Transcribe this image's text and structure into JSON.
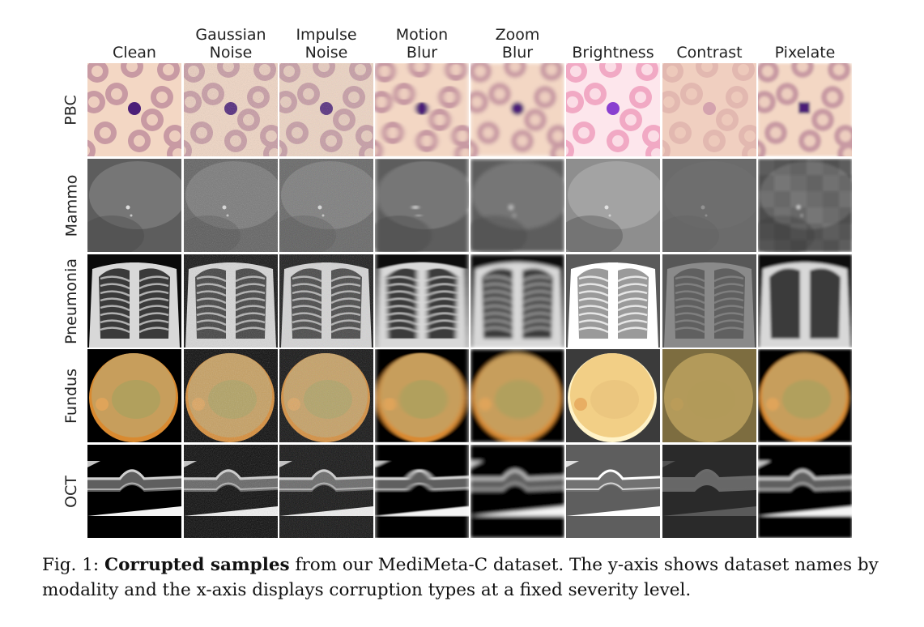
{
  "figure": {
    "columns": [
      {
        "key": "clean",
        "lines": [
          "Clean"
        ]
      },
      {
        "key": "gaussian",
        "lines": [
          "Gaussian",
          "Noise"
        ]
      },
      {
        "key": "impulse",
        "lines": [
          "Impulse",
          "Noise"
        ]
      },
      {
        "key": "motion",
        "lines": [
          "Motion",
          "Blur"
        ]
      },
      {
        "key": "zoom",
        "lines": [
          "Zoom",
          "Blur"
        ]
      },
      {
        "key": "brightness",
        "lines": [
          "Brightness"
        ]
      },
      {
        "key": "contrast",
        "lines": [
          "Contrast"
        ]
      },
      {
        "key": "pixelate",
        "lines": [
          "Pixelate"
        ]
      }
    ],
    "rows": [
      {
        "key": "pbc",
        "label": "PBC"
      },
      {
        "key": "mammo",
        "label": "Mammo"
      },
      {
        "key": "pneumonia",
        "label": "Pneumonia"
      },
      {
        "key": "fundus",
        "label": "Fundus"
      },
      {
        "key": "oct",
        "label": "OCT"
      }
    ],
    "colors": {
      "pbc_background": "#f3d7c4",
      "pbc_cell": "#c89aa3",
      "pbc_nucleus": "#4b1f78",
      "fundus_disc": "#c79e5c",
      "fundus_rim": "#d98a30",
      "xray_bone": "#d8d8d8"
    }
  },
  "caption": {
    "prefix": "Fig. 1: ",
    "bold": "Corrupted samples",
    "rest": " from our MediMeta-C dataset. The y-axis shows dataset names by modality and the x-axis displays corruption types at a fixed severity level."
  }
}
